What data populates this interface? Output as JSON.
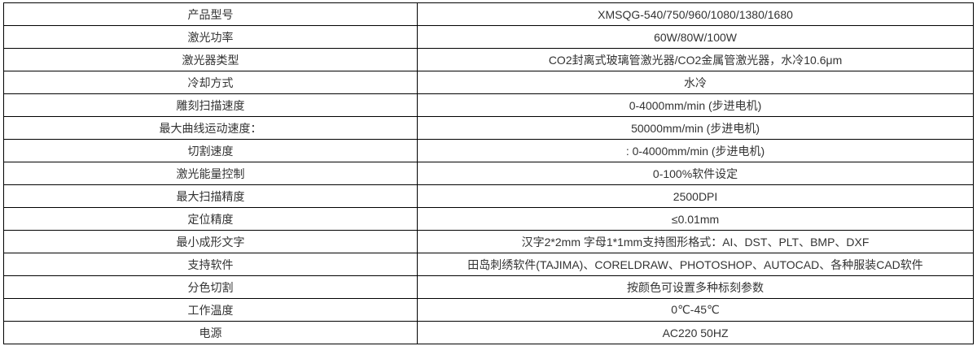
{
  "colors": {
    "border": "#000000",
    "text": "#333333",
    "background": "#ffffff"
  },
  "table": {
    "rows": [
      {
        "label": "产品型号",
        "value": "XMSQG-540/750/960/1080/1380/1680"
      },
      {
        "label": "激光功率",
        "value": "60W/80W/100W"
      },
      {
        "label": "激光器类型",
        "value": "CO2封离式玻璃管激光器/CO2金属管激光器，水冷10.6μm"
      },
      {
        "label": "冷却方式",
        "value": "水冷"
      },
      {
        "label": "雕刻扫描速度",
        "value": "0-4000mm/min (步进电机)"
      },
      {
        "label": "最大曲线运动速度：",
        "value": "50000mm/min (步进电机)"
      },
      {
        "label": "切割速度",
        "value": ": 0-4000mm/min (步进电机)"
      },
      {
        "label": "激光能量控制",
        "value": "0-100%软件设定"
      },
      {
        "label": "最大扫描精度",
        "value": "2500DPI"
      },
      {
        "label": "定位精度",
        "value": "≤0.01mm"
      },
      {
        "label": "最小成形文字",
        "value": "汉字2*2mm 字母1*1mm支持图形格式：AI、DST、PLT、BMP、DXF"
      },
      {
        "label": "支持软件",
        "value": "田岛刺绣软件(TAJIMA)、CORELDRAW、PHOTOSHOP、AUTOCAD、各种服装CAD软件"
      },
      {
        "label": "分色切割",
        "value": "按颜色可设置多种标刻参数"
      },
      {
        "label": "工作温度",
        "value": "0℃-45℃"
      },
      {
        "label": "电源",
        "value": "AC220 50HZ"
      }
    ]
  }
}
